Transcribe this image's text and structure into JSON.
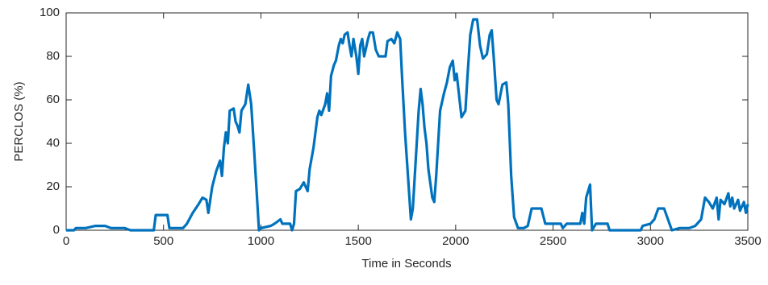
{
  "chart_data": {
    "type": "line",
    "x_label": "Time in Seconds",
    "y_label": "PERCLOS (%)",
    "x": [
      0,
      40,
      50,
      100,
      150,
      200,
      230,
      300,
      330,
      450,
      460,
      520,
      530,
      600,
      620,
      650,
      680,
      700,
      720,
      730,
      750,
      770,
      790,
      800,
      810,
      820,
      830,
      840,
      860,
      870,
      880,
      890,
      900,
      920,
      935,
      950,
      965,
      980,
      990,
      1000,
      1050,
      1070,
      1100,
      1110,
      1150,
      1160,
      1170,
      1180,
      1200,
      1220,
      1240,
      1250,
      1270,
      1290,
      1300,
      1310,
      1330,
      1340,
      1350,
      1360,
      1375,
      1385,
      1400,
      1410,
      1420,
      1430,
      1445,
      1455,
      1465,
      1475,
      1490,
      1500,
      1510,
      1520,
      1530,
      1550,
      1560,
      1575,
      1590,
      1605,
      1620,
      1640,
      1650,
      1670,
      1685,
      1700,
      1715,
      1725,
      1740,
      1755,
      1770,
      1780,
      1790,
      1800,
      1810,
      1820,
      1830,
      1840,
      1850,
      1860,
      1880,
      1890,
      1900,
      1920,
      1940,
      1955,
      1970,
      1985,
      1995,
      2005,
      2020,
      2030,
      2050,
      2060,
      2075,
      2090,
      2110,
      2125,
      2140,
      2160,
      2175,
      2185,
      2195,
      2210,
      2220,
      2240,
      2260,
      2270,
      2285,
      2300,
      2320,
      2350,
      2370,
      2390,
      2440,
      2460,
      2540,
      2550,
      2570,
      2640,
      2650,
      2660,
      2670,
      2690,
      2700,
      2720,
      2780,
      2790,
      2950,
      2960,
      3000,
      3020,
      3040,
      3070,
      3090,
      3110,
      3150,
      3200,
      3230,
      3260,
      3280,
      3300,
      3320,
      3340,
      3350,
      3360,
      3380,
      3400,
      3410,
      3420,
      3430,
      3450,
      3460,
      3480,
      3490,
      3500
    ],
    "values": [
      0,
      0,
      1,
      1,
      2,
      2,
      1,
      1,
      0,
      0,
      7,
      7,
      1,
      1,
      3,
      8,
      12,
      15,
      14,
      8,
      20,
      27,
      32,
      25,
      38,
      45,
      40,
      55,
      56,
      50,
      48,
      45,
      55,
      58,
      67,
      58,
      37,
      15,
      0,
      1,
      2,
      3,
      5,
      3,
      3,
      0,
      3,
      18,
      19,
      22,
      18,
      28,
      38,
      52,
      55,
      53,
      58,
      63,
      55,
      71,
      76,
      78,
      85,
      88,
      86,
      90,
      91,
      85,
      80,
      88,
      80,
      72,
      85,
      88,
      80,
      88,
      91,
      91,
      83,
      80,
      80,
      80,
      87,
      88,
      86,
      91,
      88,
      70,
      45,
      25,
      5,
      10,
      25,
      40,
      55,
      65,
      58,
      47,
      40,
      28,
      15,
      13,
      25,
      55,
      63,
      68,
      75,
      78,
      69,
      72,
      60,
      52,
      55,
      70,
      90,
      97,
      97,
      85,
      79,
      81,
      90,
      92,
      80,
      60,
      58,
      67,
      68,
      58,
      25,
      6,
      1,
      1,
      2,
      10,
      10,
      3,
      3,
      1,
      3,
      3,
      8,
      3,
      15,
      21,
      0,
      3,
      3,
      0,
      0,
      2,
      3,
      5,
      10,
      10,
      5,
      0,
      1,
      1,
      2,
      5,
      15,
      13,
      10,
      15,
      5,
      14,
      12,
      17,
      11,
      15,
      10,
      14,
      9,
      13,
      8,
      12
    ],
    "color": "#0072bd",
    "xlim": [
      0,
      3500
    ],
    "xticks": [
      0,
      500,
      1000,
      1500,
      2000,
      2500,
      3000,
      3500
    ],
    "ylim": [
      0,
      100
    ],
    "yticks": [
      0,
      20,
      40,
      60,
      80,
      100
    ]
  }
}
